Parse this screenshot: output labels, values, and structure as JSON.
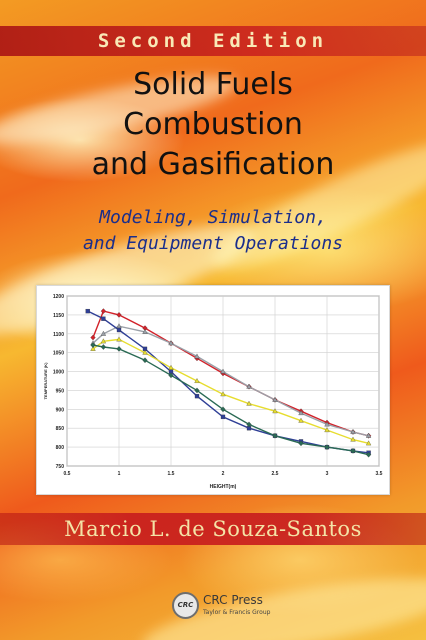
{
  "cover": {
    "edition": "Second Edition",
    "title_lines": [
      "Solid Fuels",
      "Combustion",
      "and Gasification"
    ],
    "subtitle_lines": [
      "Modeling, Simulation,",
      "and Equipment Operations"
    ],
    "author": "Marcio L. de Souza-Santos",
    "publisher": {
      "logo_text": "CRC",
      "name": "CRC Press",
      "group": "Taylor & Francis Group"
    }
  },
  "chart_data": {
    "type": "line",
    "xlabel": "HEIGHT(m)",
    "ylabel": "TEMPERATURE (K)",
    "xlim": [
      0.5,
      3.5
    ],
    "ylim": [
      750,
      1200
    ],
    "xticks": [
      "0.5",
      "1",
      "1.5",
      "2",
      "2.5",
      "3",
      "3.5"
    ],
    "yticks": [
      "750",
      "800",
      "850",
      "900",
      "950",
      "1000",
      "1050",
      "1100",
      "1150",
      "1200"
    ],
    "grid": true,
    "series": [
      {
        "color": "#d2222a",
        "marker": "diamond",
        "x": [
          0.75,
          0.85,
          1.0,
          1.25,
          1.5,
          1.75,
          2.0,
          2.25,
          2.5,
          2.75,
          3.0,
          3.25,
          3.4
        ],
        "y": [
          1090,
          1160,
          1150,
          1115,
          1075,
          1035,
          995,
          960,
          925,
          895,
          865,
          840,
          830
        ]
      },
      {
        "color": "#9aa0a8",
        "marker": "triangle",
        "x": [
          0.75,
          0.85,
          1.0,
          1.25,
          1.5,
          1.75,
          2.0,
          2.25,
          2.5,
          2.75,
          3.0,
          3.25,
          3.4
        ],
        "y": [
          1075,
          1100,
          1120,
          1105,
          1075,
          1040,
          1000,
          960,
          925,
          890,
          860,
          840,
          830
        ]
      },
      {
        "color": "#2f3f96",
        "marker": "square",
        "x": [
          0.7,
          0.85,
          1.0,
          1.25,
          1.5,
          1.75,
          2.0,
          2.25,
          2.5,
          2.75,
          3.0,
          3.25,
          3.4
        ],
        "y": [
          1160,
          1140,
          1110,
          1060,
          1000,
          935,
          880,
          850,
          830,
          815,
          800,
          790,
          785
        ]
      },
      {
        "color": "#e7dd2f",
        "marker": "triangle",
        "x": [
          0.75,
          0.85,
          1.0,
          1.25,
          1.5,
          1.75,
          2.0,
          2.25,
          2.5,
          2.75,
          3.0,
          3.25,
          3.4
        ],
        "y": [
          1060,
          1080,
          1085,
          1050,
          1010,
          975,
          940,
          915,
          895,
          870,
          845,
          820,
          810
        ]
      },
      {
        "color": "#2a6a54",
        "marker": "diamond",
        "x": [
          0.75,
          0.85,
          1.0,
          1.25,
          1.5,
          1.75,
          2.0,
          2.25,
          2.5,
          2.75,
          3.0,
          3.25,
          3.4
        ],
        "y": [
          1070,
          1065,
          1060,
          1030,
          990,
          950,
          900,
          860,
          830,
          810,
          800,
          790,
          780
        ]
      }
    ]
  }
}
